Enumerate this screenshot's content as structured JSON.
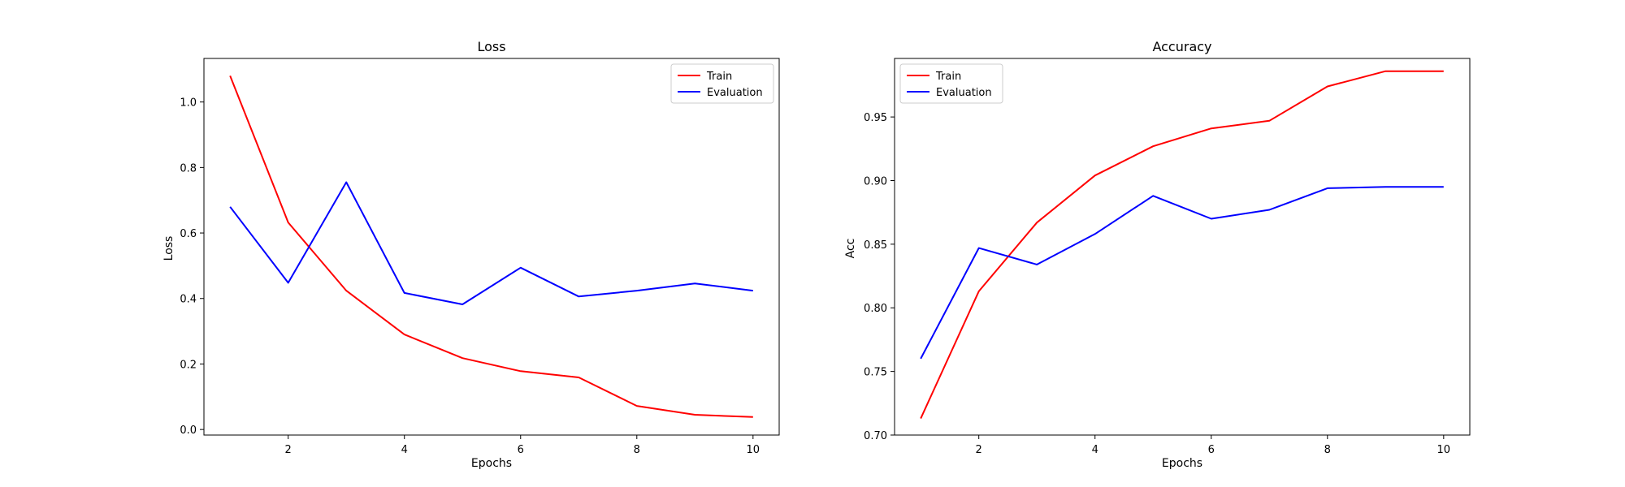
{
  "chart_data": [
    {
      "type": "line",
      "title": "Loss",
      "xlabel": "Epochs",
      "ylabel": "Loss",
      "x": [
        1,
        2,
        3,
        4,
        5,
        6,
        7,
        8,
        9,
        10
      ],
      "xlim": [
        0.55,
        10.45
      ],
      "ylim": [
        -0.017,
        1.133
      ],
      "xticks": [
        2,
        4,
        6,
        8,
        10
      ],
      "xtick_labels": [
        "2",
        "4",
        "6",
        "8",
        "10"
      ],
      "yticks": [
        0.0,
        0.2,
        0.4,
        0.6,
        0.8,
        1.0
      ],
      "ytick_labels": [
        "0.0",
        "0.2",
        "0.4",
        "0.6",
        "0.8",
        "1.0"
      ],
      "grid": false,
      "legend_position": "top-right",
      "series": [
        {
          "name": "Train",
          "color": "#ff0000",
          "values": [
            1.08,
            0.632,
            0.424,
            0.29,
            0.218,
            0.178,
            0.159,
            0.072,
            0.045,
            0.038
          ]
        },
        {
          "name": "Evaluation",
          "color": "#0000ff",
          "values": [
            0.68,
            0.448,
            0.755,
            0.417,
            0.382,
            0.494,
            0.406,
            0.424,
            0.446,
            0.424
          ]
        }
      ]
    },
    {
      "type": "line",
      "title": "Accuracy",
      "xlabel": "Epochs",
      "ylabel": "Acc",
      "x": [
        1,
        2,
        3,
        4,
        5,
        6,
        7,
        8,
        9,
        10
      ],
      "xlim": [
        0.55,
        10.45
      ],
      "ylim": [
        0.7,
        0.996
      ],
      "xticks": [
        2,
        4,
        6,
        8,
        10
      ],
      "xtick_labels": [
        "2",
        "4",
        "6",
        "8",
        "10"
      ],
      "yticks": [
        0.7,
        0.75,
        0.8,
        0.85,
        0.9,
        0.95
      ],
      "ytick_labels": [
        "0.70",
        "0.75",
        "0.80",
        "0.85",
        "0.90",
        "0.95"
      ],
      "grid": false,
      "legend_position": "top-left",
      "series": [
        {
          "name": "Train",
          "color": "#ff0000",
          "values": [
            0.713,
            0.813,
            0.867,
            0.904,
            0.927,
            0.941,
            0.947,
            0.974,
            0.986,
            0.986
          ]
        },
        {
          "name": "Evaluation",
          "color": "#0000ff",
          "values": [
            0.76,
            0.847,
            0.834,
            0.858,
            0.888,
            0.87,
            0.877,
            0.894,
            0.895,
            0.895
          ]
        }
      ]
    }
  ]
}
